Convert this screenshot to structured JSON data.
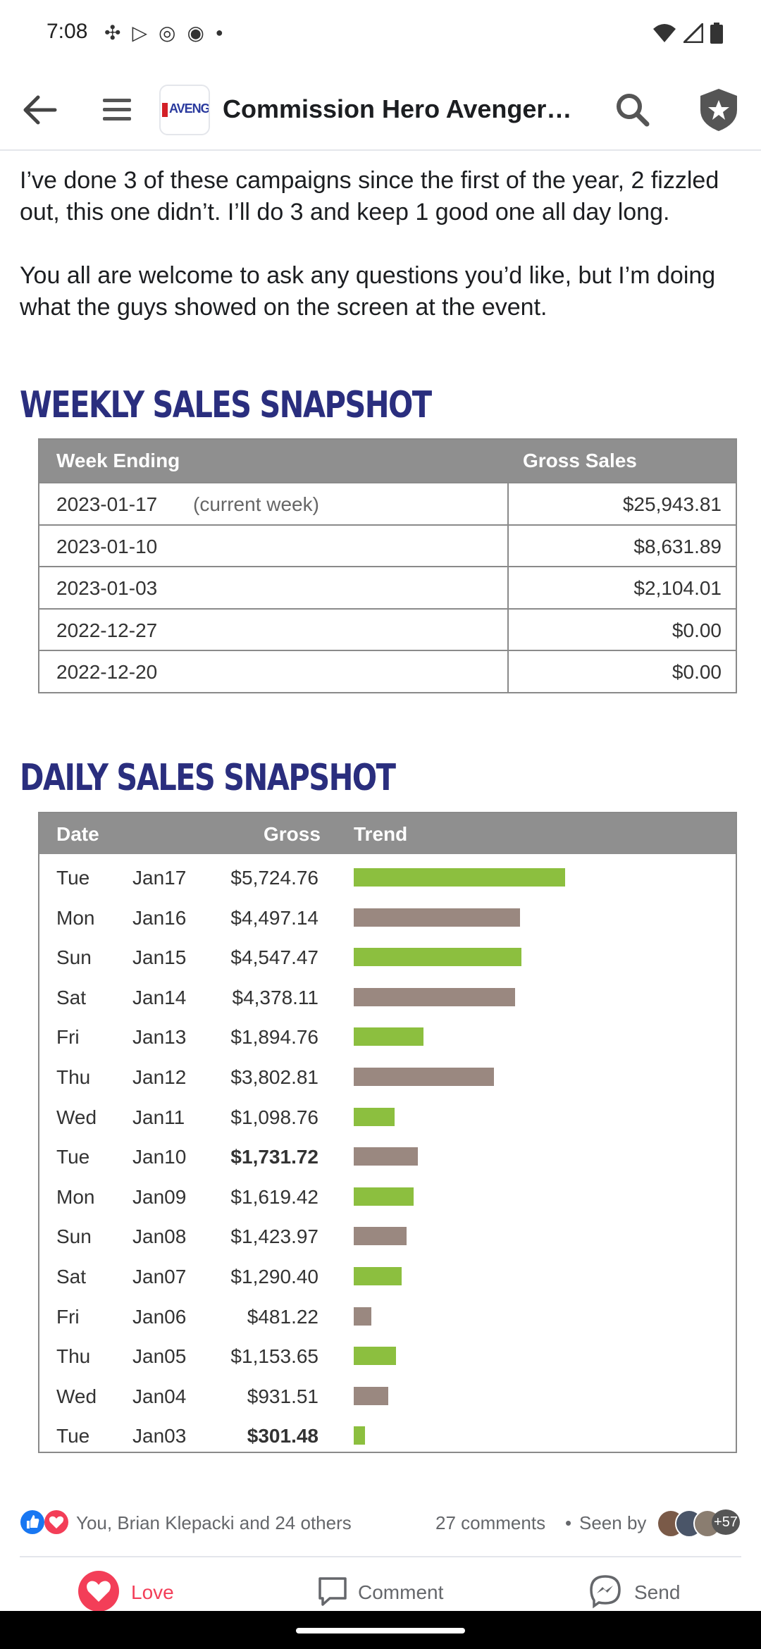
{
  "status": {
    "time": "7:08"
  },
  "appbar": {
    "title": "Commission Hero Avengers…",
    "logo_text": "AVENG"
  },
  "post": {
    "para1": "I’ve done 3 of these campaigns since the first of the year, 2 fizzled out, this one didn’t. I’ll do 3 and keep 1 good one all day long.",
    "para2": "You all are welcome to ask any questions you’d like, but I’m doing what the guys showed on the screen at the event."
  },
  "weekly": {
    "title": "WEEKLY SALES SNAPSHOT",
    "col1": "Week Ending",
    "col2": "Gross Sales",
    "rows": [
      {
        "date": "2023-01-17",
        "note": "(current week)",
        "amount": "$25,943.81"
      },
      {
        "date": "2023-01-10",
        "note": "",
        "amount": "$8,631.89"
      },
      {
        "date": "2023-01-03",
        "note": "",
        "amount": "$2,104.01"
      },
      {
        "date": "2022-12-27",
        "note": "",
        "amount": "$0.00"
      },
      {
        "date": "2022-12-20",
        "note": "",
        "amount": "$0.00"
      }
    ]
  },
  "daily": {
    "title": "DAILY SALES SNAPSHOT",
    "col_date": "Date",
    "col_gross": "Gross",
    "col_trend": "Trend",
    "rows": [
      {
        "day": "Tue",
        "date": "Jan17",
        "gross": "$5,724.76",
        "value": 5724.76,
        "color": "#8cbf3f"
      },
      {
        "day": "Mon",
        "date": "Jan16",
        "gross": "$4,497.14",
        "value": 4497.14,
        "color": "#9a8880"
      },
      {
        "day": "Sun",
        "date": "Jan15",
        "gross": "$4,547.47",
        "value": 4547.47,
        "color": "#8cbf3f"
      },
      {
        "day": "Sat",
        "date": "Jan14",
        "gross": "$4,378.11",
        "value": 4378.11,
        "color": "#9a8880"
      },
      {
        "day": "Fri",
        "date": "Jan13",
        "gross": "$1,894.76",
        "value": 1894.76,
        "color": "#8cbf3f"
      },
      {
        "day": "Thu",
        "date": "Jan12",
        "gross": "$3,802.81",
        "value": 3802.81,
        "color": "#9a8880"
      },
      {
        "day": "Wed",
        "date": "Jan11",
        "gross": "$1,098.76",
        "value": 1098.76,
        "color": "#8cbf3f"
      },
      {
        "day": "Tue",
        "date": "Jan10",
        "gross": "$1,731.72",
        "value": 1731.72,
        "color": "#9a8880"
      },
      {
        "day": "Mon",
        "date": "Jan09",
        "gross": "$1,619.42",
        "value": 1619.42,
        "color": "#8cbf3f"
      },
      {
        "day": "Sun",
        "date": "Jan08",
        "gross": "$1,423.97",
        "value": 1423.97,
        "color": "#9a8880"
      },
      {
        "day": "Sat",
        "date": "Jan07",
        "gross": "$1,290.40",
        "value": 1290.4,
        "color": "#8cbf3f"
      },
      {
        "day": "Fri",
        "date": "Jan06",
        "gross": "$481.22",
        "value": 481.22,
        "color": "#9a8880"
      },
      {
        "day": "Thu",
        "date": "Jan05",
        "gross": "$1,153.65",
        "value": 1153.65,
        "color": "#8cbf3f"
      },
      {
        "day": "Wed",
        "date": "Jan04",
        "gross": "$931.51",
        "value": 931.51,
        "color": "#9a8880"
      },
      {
        "day": "Tue",
        "date": "Jan03",
        "gross": "$301.48",
        "value": 301.48,
        "color": "#8cbf3f"
      }
    ]
  },
  "reactions": {
    "names": "You, Brian Klepacki and 24 others",
    "comments": "27 comments",
    "seen": "Seen by",
    "seen_count": "+57"
  },
  "actions": {
    "love": "Love",
    "comment": "Comment",
    "send": "Send"
  }
}
